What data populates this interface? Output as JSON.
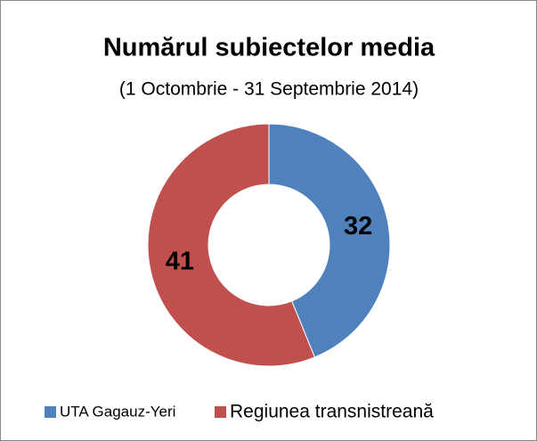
{
  "chart_data": {
    "type": "donut",
    "title": "Numărul subiectelor media",
    "subtitle": "(1 Octombrie - 31 Septembrie 2014)",
    "categories": [
      "UTA Gagauz-Yeri",
      "Regiunea transnistreană"
    ],
    "values": [
      32,
      41
    ],
    "colors": [
      "#4f81bd",
      "#c0504d"
    ],
    "legend": "bottom"
  }
}
